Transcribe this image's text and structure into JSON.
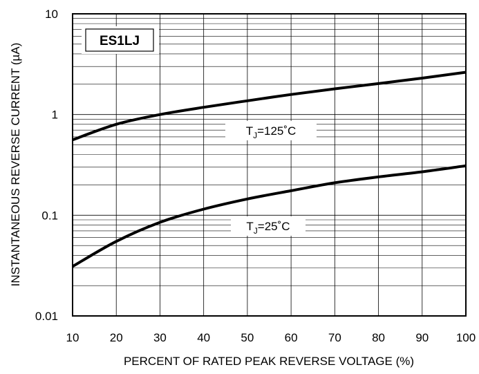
{
  "chart_data": {
    "type": "line",
    "title": "ES1LJ",
    "xlabel": "PERCENT OF RATED PEAK REVERSE VOLTAGE (%)",
    "ylabel": "INSTANTANEOUS REVERSE CURRENT (µA)",
    "xlim": [
      10,
      100
    ],
    "ylim": [
      0.01,
      10
    ],
    "yscale": "log",
    "grid": true,
    "x_ticks": [
      "10",
      "20",
      "30",
      "40",
      "50",
      "60",
      "70",
      "80",
      "90",
      "100"
    ],
    "y_ticks": [
      "10",
      "1",
      "0.1",
      "0.01"
    ],
    "x": [
      10,
      20,
      30,
      40,
      50,
      60,
      70,
      80,
      90,
      100
    ],
    "series": [
      {
        "name_main": "T",
        "name_sub": "J",
        "name_rest": "=125˚C",
        "values": [
          0.56,
          0.8,
          1.0,
          1.18,
          1.37,
          1.58,
          1.8,
          2.03,
          2.3,
          2.63
        ]
      },
      {
        "name_main": "T",
        "name_sub": "J",
        "name_rest": "=25˚C",
        "values": [
          0.031,
          0.055,
          0.085,
          0.115,
          0.145,
          0.175,
          0.21,
          0.24,
          0.27,
          0.31
        ]
      }
    ]
  }
}
